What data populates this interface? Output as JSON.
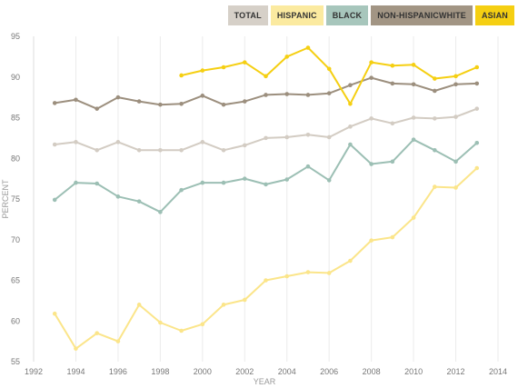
{
  "legend": [
    {
      "label": "TOTAL",
      "color": "#d6d0c8"
    },
    {
      "label": "HISPANIC",
      "color": "#fbeaa0"
    },
    {
      "label": "BLACK",
      "color": "#a7c6bc"
    },
    {
      "label": "NON-HISPANICWHITE",
      "color": "#a29584"
    },
    {
      "label": "ASIAN",
      "color": "#f5cf12"
    }
  ],
  "chart_data": {
    "type": "line",
    "xlabel": "YEAR",
    "ylabel": "PERCENT",
    "xlim": [
      1992,
      2014
    ],
    "ylim": [
      55,
      95
    ],
    "x_ticks": [
      1992,
      1994,
      1996,
      1998,
      2000,
      2002,
      2004,
      2006,
      2008,
      2010,
      2012,
      2014
    ],
    "y_ticks": [
      55,
      60,
      65,
      70,
      75,
      80,
      85,
      90,
      95
    ],
    "grid": "vertical",
    "legend_position": "top-right",
    "series": [
      {
        "name": "HISPANIC",
        "color": "#fbe58a",
        "x": [
          1993,
          1994,
          1995,
          1996,
          1997,
          1998,
          1999,
          2000,
          2001,
          2002,
          2003,
          2004,
          2005,
          2006,
          2007,
          2008,
          2009,
          2010,
          2011,
          2012,
          2013
        ],
        "values": [
          60.9,
          56.6,
          58.5,
          57.5,
          62.0,
          59.8,
          58.8,
          59.6,
          62.0,
          62.6,
          65.0,
          65.5,
          66.0,
          65.9,
          67.4,
          69.9,
          70.3,
          72.7,
          76.5,
          76.4,
          78.8
        ]
      },
      {
        "name": "BLACK",
        "color": "#9cbfb4",
        "x": [
          1993,
          1994,
          1995,
          1996,
          1997,
          1998,
          1999,
          2000,
          2001,
          2002,
          2003,
          2004,
          2005,
          2006,
          2007,
          2008,
          2009,
          2010,
          2011,
          2012,
          2013
        ],
        "values": [
          74.9,
          77.0,
          76.9,
          75.3,
          74.7,
          73.4,
          76.1,
          77.0,
          77.0,
          77.5,
          76.8,
          77.4,
          79.0,
          77.3,
          81.7,
          79.3,
          79.6,
          82.3,
          81.0,
          79.6,
          81.9
        ]
      },
      {
        "name": "TOTAL",
        "color": "#d3ccc3",
        "x": [
          1993,
          1994,
          1995,
          1996,
          1997,
          1998,
          1999,
          2000,
          2001,
          2002,
          2003,
          2004,
          2005,
          2006,
          2007,
          2008,
          2009,
          2010,
          2011,
          2012,
          2013
        ],
        "values": [
          81.7,
          82.0,
          81.0,
          82.0,
          81.0,
          81.0,
          81.0,
          82.0,
          81.0,
          81.6,
          82.5,
          82.6,
          82.9,
          82.6,
          83.9,
          84.9,
          84.3,
          85.0,
          84.9,
          85.1,
          86.1
        ]
      },
      {
        "name": "NON-HISPANICWHITE",
        "color": "#9c8f7e",
        "x": [
          1993,
          1994,
          1995,
          1996,
          1997,
          1998,
          1999,
          2000,
          2001,
          2002,
          2003,
          2004,
          2005,
          2006,
          2007,
          2008,
          2009,
          2010,
          2011,
          2012,
          2013
        ],
        "values": [
          86.8,
          87.2,
          86.1,
          87.5,
          87.0,
          86.6,
          86.7,
          87.7,
          86.6,
          87.0,
          87.8,
          87.9,
          87.8,
          88.0,
          89.0,
          89.9,
          89.2,
          89.1,
          88.3,
          89.1,
          89.2
        ]
      },
      {
        "name": "ASIAN",
        "color": "#f5cf12",
        "x": [
          1999,
          2000,
          2001,
          2002,
          2003,
          2004,
          2005,
          2006,
          2007,
          2008,
          2009,
          2010,
          2011,
          2012,
          2013
        ],
        "values": [
          90.2,
          90.8,
          91.2,
          91.8,
          90.1,
          92.5,
          93.6,
          91.0,
          86.7,
          91.8,
          91.4,
          91.5,
          89.8,
          90.1,
          91.2
        ]
      }
    ]
  }
}
